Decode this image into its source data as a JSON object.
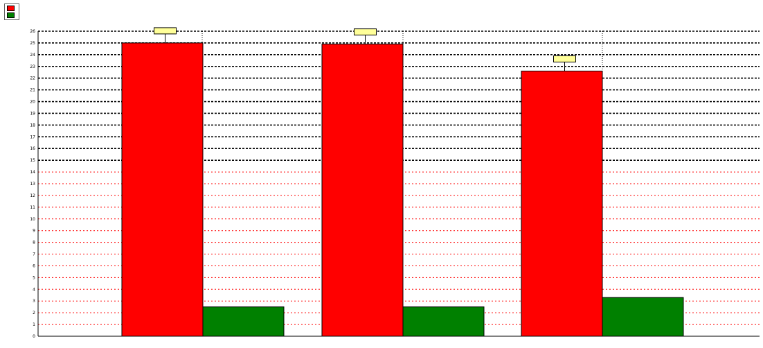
{
  "chart_data": {
    "type": "bar",
    "title": "",
    "xlabel": "",
    "ylabel": "",
    "categories": [
      "",
      "",
      ""
    ],
    "series": [
      {
        "name": "",
        "color": "#ff0000",
        "values": [
          25.0,
          24.9,
          22.6
        ]
      },
      {
        "name": "",
        "color": "#008000",
        "values": [
          2.5,
          2.5,
          3.3
        ]
      }
    ],
    "data_labels": [
      "",
      "",
      ""
    ],
    "ylim": [
      0,
      26
    ],
    "yticks": [
      0,
      1,
      2,
      3,
      4,
      5,
      6,
      7,
      8,
      9,
      10,
      11,
      12,
      13,
      14,
      15,
      16,
      17,
      18,
      19,
      20,
      21,
      22,
      23,
      24,
      25,
      26
    ],
    "grid": true,
    "legend_position": "top-left"
  }
}
